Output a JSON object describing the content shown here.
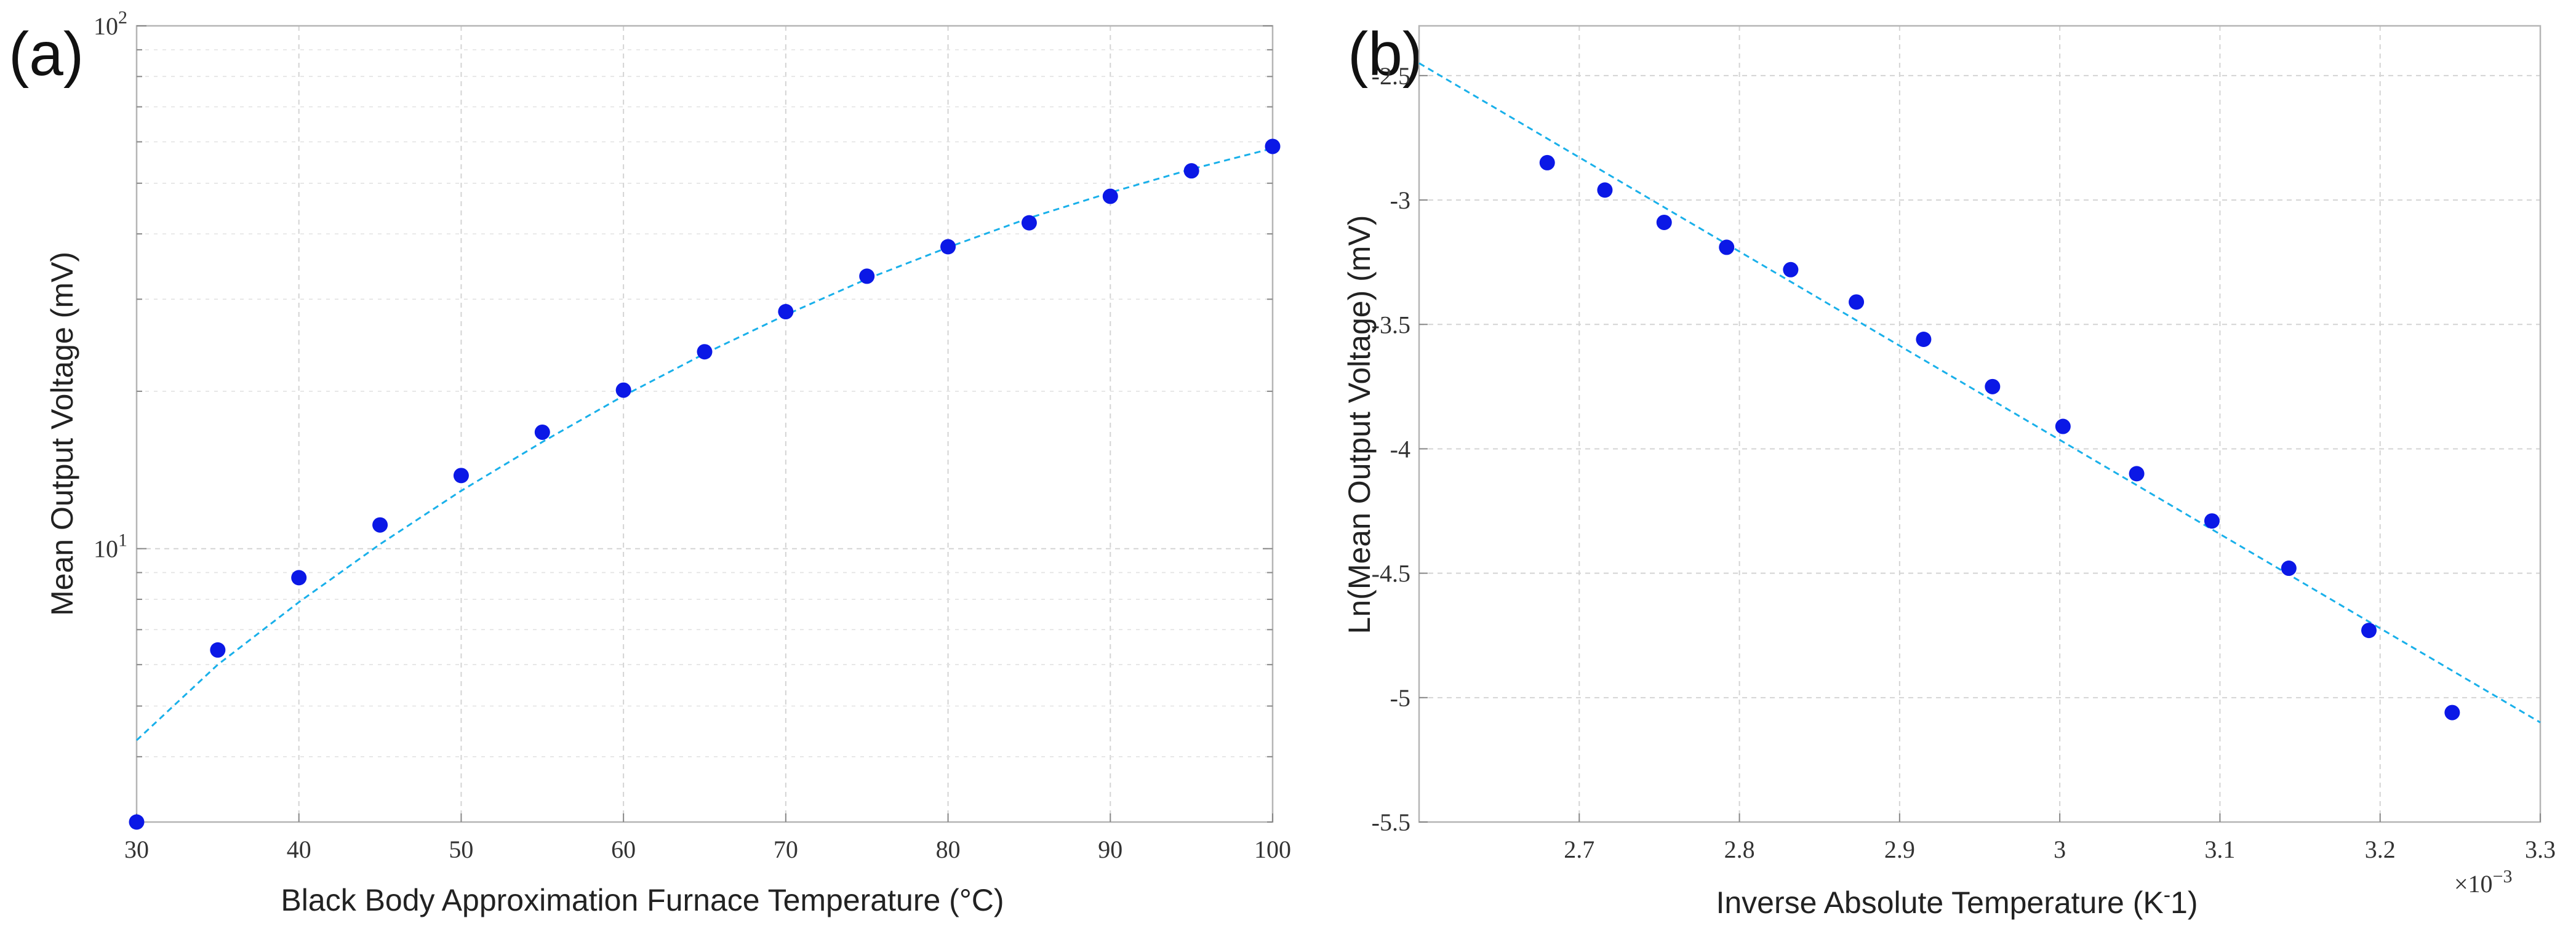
{
  "chart_data": [
    {
      "type": "scatter",
      "panel_label": "(a)",
      "xlabel": "Black Body Approximation Furnace Temperature (°C)",
      "ylabel": "Mean Output Voltage (mV)",
      "yscale": "log",
      "xlim": [
        30,
        100
      ],
      "ylim": [
        3,
        100
      ],
      "x_ticks": [
        "30",
        "40",
        "50",
        "60",
        "70",
        "80",
        "90",
        "100"
      ],
      "y_tick_labels": [
        {
          "value": 10,
          "base": "10",
          "exp": "1"
        },
        {
          "value": 100,
          "base": "10",
          "exp": "2"
        }
      ],
      "grid": true,
      "series": [
        {
          "name": "measured",
          "color": "#0b18e6",
          "x": [
            30,
            35,
            40,
            45,
            50,
            55,
            60,
            65,
            70,
            75,
            80,
            85,
            90,
            95,
            100
          ],
          "y": [
            3.0,
            6.4,
            8.8,
            11.1,
            13.8,
            16.7,
            20.1,
            23.8,
            28.4,
            33.2,
            37.8,
            42.0,
            47.2,
            52.8,
            58.8
          ]
        }
      ],
      "fit": {
        "name": "fit",
        "color": "#19b0ea",
        "x": [
          30,
          35,
          40,
          45,
          50,
          55,
          60,
          65,
          70,
          75,
          80,
          85,
          90,
          95,
          100
        ],
        "y": [
          4.3,
          6.0,
          7.9,
          10.2,
          12.9,
          16.0,
          19.6,
          23.6,
          28.0,
          32.8,
          37.7,
          42.9,
          48.0,
          53.2,
          58.3
        ]
      }
    },
    {
      "type": "scatter",
      "panel_label": "(b)",
      "xlabel": "Inverse Absolute Temperature (K",
      "xlabel_sup": "-",
      "xlabel_tail": "1)",
      "ylabel": "Ln(Mean Output Voltage) (mV)",
      "x_multiplier_base": "×10",
      "x_multiplier_exp": "−3",
      "xlim": [
        2.6,
        3.3
      ],
      "ylim": [
        -5.5,
        -2.3
      ],
      "x_ticks": [
        2.7,
        2.8,
        2.9,
        3.0,
        3.1,
        3.2,
        3.3
      ],
      "x_tick_labels": [
        "2.7",
        "2.8",
        "2.9",
        "3",
        "3.1",
        "3.2",
        "3.3"
      ],
      "y_ticks": [
        -2.5,
        -3,
        -3.5,
        -4,
        -4.5,
        -5,
        -5.5
      ],
      "y_tick_labels": [
        "-2.5",
        "-3",
        "-3.5",
        "-4",
        "-4.5",
        "-5",
        "-5.5"
      ],
      "grid": true,
      "series": [
        {
          "name": "measured",
          "color": "#0b18e6",
          "x": [
            2.68,
            2.716,
            2.753,
            2.792,
            2.832,
            2.873,
            2.915,
            2.958,
            3.002,
            3.048,
            3.095,
            3.143,
            3.193,
            3.245
          ],
          "y": [
            -2.85,
            -2.96,
            -3.09,
            -3.19,
            -3.28,
            -3.41,
            -3.56,
            -3.75,
            -3.91,
            -4.1,
            -4.29,
            -4.48,
            -4.73,
            -5.06
          ]
        }
      ],
      "fit": {
        "name": "linear fit",
        "color": "#19b0ea",
        "x": [
          2.6,
          3.3
        ],
        "y": [
          -2.45,
          -5.1
        ]
      }
    }
  ]
}
